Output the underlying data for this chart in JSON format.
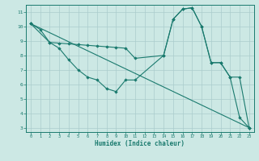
{
  "xlabel": "Humidex (Indice chaleur)",
  "bg_color": "#cce8e4",
  "line_color": "#1a7a6e",
  "grid_color": "#aacccc",
  "xlim": [
    -0.5,
    23.5
  ],
  "ylim": [
    2.7,
    11.5
  ],
  "xticks": [
    0,
    1,
    2,
    3,
    4,
    5,
    6,
    7,
    8,
    9,
    10,
    11,
    12,
    13,
    14,
    15,
    16,
    17,
    18,
    19,
    20,
    21,
    22,
    23
  ],
  "yticks": [
    3,
    4,
    5,
    6,
    7,
    8,
    9,
    10,
    11
  ],
  "series": [
    {
      "x": [
        0,
        1,
        2,
        3,
        4,
        5,
        6,
        7,
        8,
        9,
        10,
        11,
        14,
        15,
        16,
        17,
        18,
        19,
        20,
        21,
        22,
        23
      ],
      "y": [
        10.2,
        9.8,
        8.9,
        8.85,
        8.8,
        8.75,
        8.7,
        8.65,
        8.6,
        8.55,
        8.5,
        7.8,
        8.0,
        10.5,
        11.2,
        11.3,
        10.0,
        7.5,
        7.5,
        6.5,
        6.5,
        3.0
      ]
    },
    {
      "x": [
        0,
        2,
        3,
        4,
        5,
        6,
        7,
        8,
        9,
        10,
        11,
        14,
        15,
        16,
        17,
        18,
        19,
        20,
        21,
        22,
        23
      ],
      "y": [
        10.2,
        8.9,
        8.5,
        7.7,
        7.0,
        6.5,
        6.3,
        5.7,
        5.5,
        6.3,
        6.3,
        8.0,
        10.5,
        11.2,
        11.3,
        10.0,
        7.5,
        7.5,
        6.5,
        3.7,
        3.0
      ]
    },
    {
      "x": [
        0,
        23
      ],
      "y": [
        10.2,
        3.0
      ]
    }
  ]
}
